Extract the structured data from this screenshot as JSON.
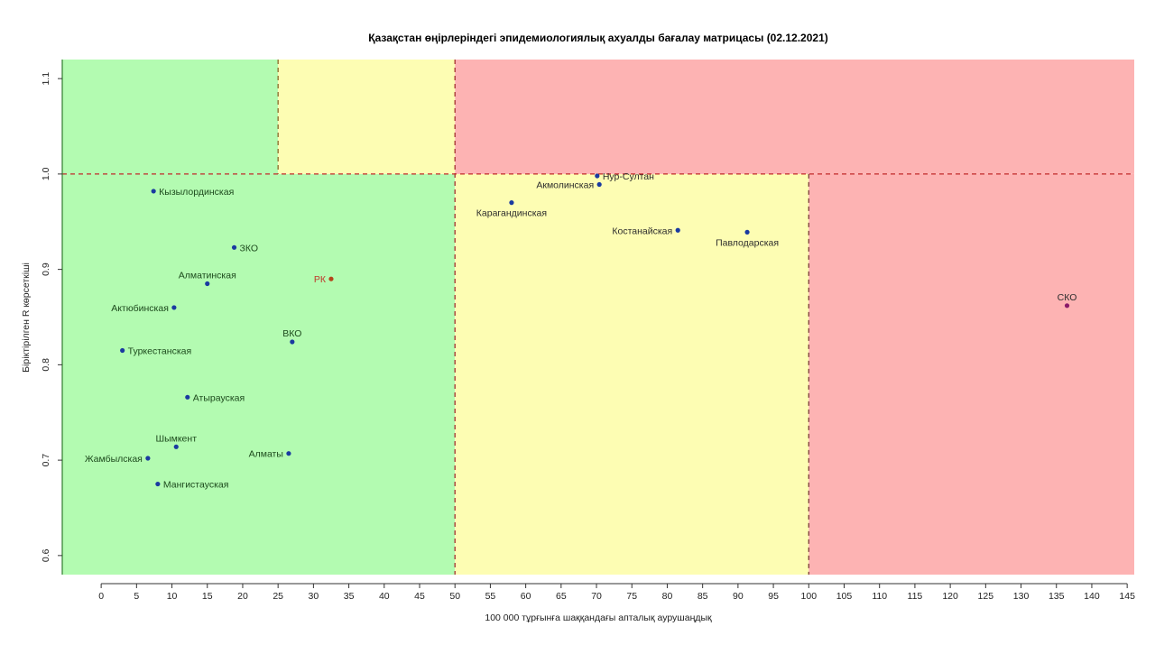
{
  "chart_data": {
    "type": "scatter",
    "title": "Қазақстан өңірлеріндегі эпидемиологиялық ахуалды бағалау матрицасы  (02.12.2021)",
    "xlabel": "100 000 тұрғынға шаққандағы апталық аурушаңдық",
    "ylabel": "Біріктірілген R көрсеткіші",
    "xlim": [
      -5.5,
      146
    ],
    "ylim": [
      0.58,
      1.12
    ],
    "x_ticks": [
      "0",
      "5",
      "10",
      "15",
      "20",
      "25",
      "30",
      "35",
      "40",
      "45",
      "50",
      "55",
      "60",
      "65",
      "70",
      "75",
      "80",
      "85",
      "90",
      "95",
      "100",
      "105",
      "110",
      "115",
      "120",
      "125",
      "130",
      "135",
      "140",
      "145"
    ],
    "y_ticks": [
      "0.6",
      "0.7",
      "0.8",
      "0.9",
      "1.0",
      "1.1"
    ],
    "grid": false,
    "zones": [
      {
        "x0": -5.5,
        "x1": 50,
        "y0": 0.58,
        "y1": 1.0,
        "color": "#b3fbb1"
      },
      {
        "x0": -5.5,
        "x1": 25,
        "y0": 1.0,
        "y1": 1.12,
        "color": "#b3fbb1"
      },
      {
        "x0": 25,
        "x1": 50,
        "y0": 1.0,
        "y1": 1.12,
        "color": "#fdfdb3"
      },
      {
        "x0": 50,
        "x1": 100,
        "y0": 0.58,
        "y1": 1.0,
        "color": "#fdfdb3"
      },
      {
        "x0": 50,
        "x1": 146,
        "y0": 1.0,
        "y1": 1.12,
        "color": "#fdb3b3"
      },
      {
        "x0": 100,
        "x1": 146,
        "y0": 0.58,
        "y1": 1.0,
        "color": "#fdb3b3"
      }
    ],
    "lines": [
      {
        "orient": "v",
        "at": 25,
        "from": 1.0,
        "to": 1.12,
        "color": "#8a6a2a"
      },
      {
        "orient": "v",
        "at": 50,
        "from": 0.58,
        "to": 1.12,
        "color": "#a33030"
      },
      {
        "orient": "v",
        "at": 100,
        "from": 0.58,
        "to": 1.0,
        "color": "#7a3a3a"
      },
      {
        "orient": "h",
        "at": 1.0,
        "from": -5.5,
        "to": 146,
        "color": "#c22a2a"
      }
    ],
    "points": [
      {
        "name": "Кызылординская",
        "x": 7.4,
        "y": 0.982,
        "color": "#1a3aa0",
        "pos": "right",
        "cls": ""
      },
      {
        "name": "ЗКО",
        "x": 18.8,
        "y": 0.923,
        "color": "#1a3aa0",
        "pos": "right",
        "cls": ""
      },
      {
        "name": "Алматинская",
        "x": 15.0,
        "y": 0.885,
        "color": "#1a3aa0",
        "pos": "above",
        "cls": ""
      },
      {
        "name": "РК",
        "x": 32.5,
        "y": 0.89,
        "color": "#b5451b",
        "pos": "left",
        "cls": "red"
      },
      {
        "name": "Актюбинская",
        "x": 10.3,
        "y": 0.86,
        "color": "#1a3aa0",
        "pos": "left",
        "cls": ""
      },
      {
        "name": "ВКО",
        "x": 27.0,
        "y": 0.824,
        "color": "#1a3aa0",
        "pos": "above",
        "cls": ""
      },
      {
        "name": "Туркестанская",
        "x": 3.0,
        "y": 0.815,
        "color": "#1a3aa0",
        "pos": "right",
        "cls": ""
      },
      {
        "name": "Атырауская",
        "x": 12.2,
        "y": 0.766,
        "color": "#1a3aa0",
        "pos": "right",
        "cls": ""
      },
      {
        "name": "Шымкент",
        "x": 10.6,
        "y": 0.714,
        "color": "#1a3aa0",
        "pos": "above",
        "cls": ""
      },
      {
        "name": "Алматы",
        "x": 26.5,
        "y": 0.707,
        "color": "#1a3aa0",
        "pos": "left",
        "cls": ""
      },
      {
        "name": "Жамбылская",
        "x": 6.6,
        "y": 0.702,
        "color": "#1a3aa0",
        "pos": "left",
        "cls": ""
      },
      {
        "name": "Мангистауская",
        "x": 8.0,
        "y": 0.675,
        "color": "#1a3aa0",
        "pos": "right",
        "cls": ""
      },
      {
        "name": "Нур-Султан",
        "x": 70.1,
        "y": 0.998,
        "color": "#1a3aa0",
        "pos": "right",
        "cls": "dark"
      },
      {
        "name": "Акмолинская",
        "x": 70.4,
        "y": 0.989,
        "color": "#1a3aa0",
        "pos": "left",
        "cls": "dark"
      },
      {
        "name": "Карагандинская",
        "x": 58.0,
        "y": 0.97,
        "color": "#1a3aa0",
        "pos": "below",
        "cls": "dark"
      },
      {
        "name": "Костанайская",
        "x": 81.5,
        "y": 0.941,
        "color": "#1a3aa0",
        "pos": "left",
        "cls": "dark"
      },
      {
        "name": "Павлодарская",
        "x": 91.3,
        "y": 0.939,
        "color": "#1a3aa0",
        "pos": "below",
        "cls": "dark"
      },
      {
        "name": "СКО",
        "x": 136.5,
        "y": 0.862,
        "color": "#8a1a6a",
        "pos": "above",
        "cls": "dark"
      }
    ]
  }
}
